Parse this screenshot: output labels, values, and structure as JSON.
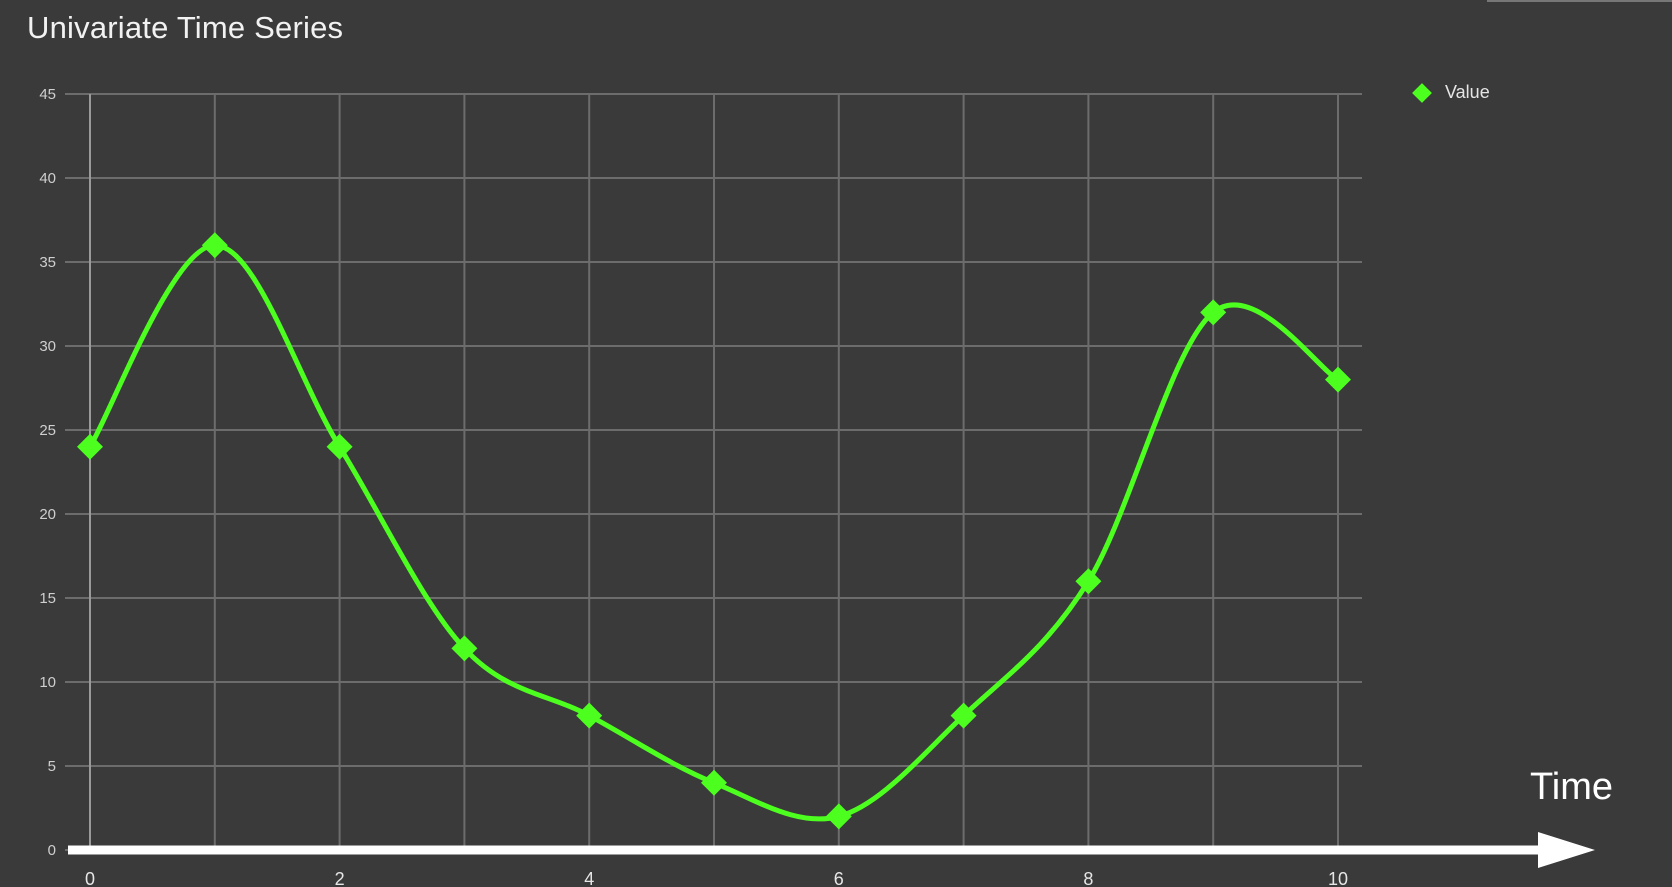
{
  "chart_data": {
    "type": "line",
    "title": "Univariate Time Series",
    "xlabel": "Time",
    "ylabel": "",
    "x": [
      0,
      1,
      2,
      3,
      4,
      5,
      6,
      7,
      8,
      9,
      10
    ],
    "x_ticks": [
      0,
      2,
      4,
      6,
      8,
      10
    ],
    "y_ticks": [
      0,
      5,
      10,
      15,
      20,
      25,
      30,
      35,
      40,
      45
    ],
    "xlim": [
      0,
      10
    ],
    "ylim": [
      0,
      45
    ],
    "grid": true,
    "legend_position": "top-right",
    "smooth": true,
    "series": [
      {
        "name": "Value",
        "color": "#4dff1f",
        "marker": "diamond",
        "values": [
          24,
          36,
          24,
          12,
          8,
          4,
          2,
          8,
          16,
          32,
          28
        ]
      }
    ]
  },
  "colors": {
    "background": "#3a3a3a",
    "grid": "#6c6c6c",
    "axis_arrow": "#ffffff"
  }
}
